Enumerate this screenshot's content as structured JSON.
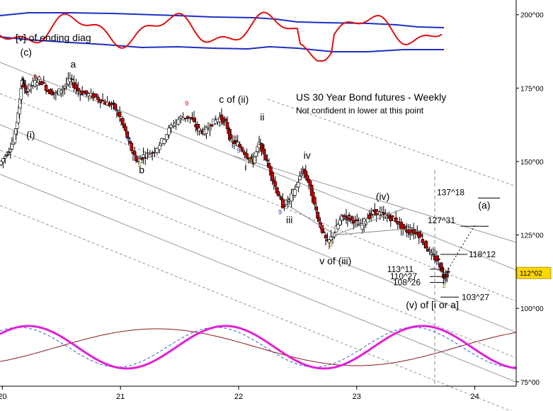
{
  "chart_data": {
    "type": "line",
    "title": "US 30 Year Bond futures - Weekly",
    "subtitle": "Not confident in lower at this point",
    "x_ticks": [
      "20",
      "21",
      "22",
      "23",
      "24"
    ],
    "x_range": [
      19.98,
      24.35
    ],
    "y_ticks": [
      "200^00",
      "175^00",
      "150^00",
      "125^00",
      "100^00",
      "75^00"
    ],
    "y_tick_values": [
      200,
      175,
      150,
      125,
      100,
      75
    ],
    "y_range": [
      73.5,
      205
    ],
    "current_price": "112^02",
    "current_price_value": 112.06,
    "colors": {
      "up": "#000000",
      "down": "#cc0000",
      "upper_band": "#1f2fc4",
      "oscillator": "#e01010",
      "cycle_magenta": "#e020d8",
      "cycle_blue": "#2f5fbf",
      "cycle_red": "#8a1a1a",
      "channel": "#999999",
      "price_box": "#ffd700",
      "seq_9_red": "#cc0000",
      "seq_9_blue": "#2233aa",
      "seq_5": "#997700"
    },
    "price_points": [
      [
        19.98,
        149
      ],
      [
        20.05,
        153
      ],
      [
        20.1,
        157
      ],
      [
        20.14,
        166
      ],
      [
        20.17,
        178
      ],
      [
        20.2,
        174
      ],
      [
        20.25,
        176
      ],
      [
        20.32,
        178
      ],
      [
        20.4,
        174
      ],
      [
        20.46,
        173
      ],
      [
        20.52,
        175
      ],
      [
        20.58,
        178
      ],
      [
        20.65,
        174
      ],
      [
        20.72,
        173
      ],
      [
        20.8,
        172
      ],
      [
        20.88,
        170
      ],
      [
        20.95,
        169
      ],
      [
        21.0,
        165
      ],
      [
        21.05,
        160
      ],
      [
        21.1,
        154
      ],
      [
        21.15,
        150
      ],
      [
        21.2,
        152
      ],
      [
        21.28,
        153
      ],
      [
        21.36,
        157
      ],
      [
        21.44,
        162
      ],
      [
        21.52,
        165
      ],
      [
        21.6,
        165
      ],
      [
        21.66,
        161
      ],
      [
        21.72,
        160
      ],
      [
        21.78,
        163
      ],
      [
        21.85,
        165
      ],
      [
        21.9,
        163
      ],
      [
        21.94,
        157
      ],
      [
        22.0,
        156
      ],
      [
        22.08,
        152
      ],
      [
        22.13,
        150
      ],
      [
        22.18,
        156
      ],
      [
        22.22,
        153
      ],
      [
        22.28,
        146
      ],
      [
        22.33,
        140
      ],
      [
        22.38,
        135
      ],
      [
        22.44,
        137
      ],
      [
        22.5,
        142
      ],
      [
        22.55,
        147
      ],
      [
        22.6,
        143
      ],
      [
        22.65,
        135
      ],
      [
        22.7,
        128
      ],
      [
        22.76,
        122
      ],
      [
        22.82,
        126
      ],
      [
        22.88,
        131
      ],
      [
        22.93,
        131
      ],
      [
        22.98,
        130
      ],
      [
        23.04,
        128
      ],
      [
        23.1,
        131
      ],
      [
        23.16,
        133
      ],
      [
        23.22,
        132
      ],
      [
        23.28,
        131
      ],
      [
        23.34,
        130
      ],
      [
        23.4,
        127
      ],
      [
        23.46,
        126
      ],
      [
        23.52,
        126
      ],
      [
        23.58,
        122
      ],
      [
        23.64,
        118
      ],
      [
        23.7,
        116
      ],
      [
        23.74,
        111
      ],
      [
        23.78,
        112
      ]
    ],
    "ending_diagonal_lines": [
      [
        [
          22.38,
          136
        ],
        [
          22.82,
          125
        ],
        [
          23.4,
          127
        ]
      ],
      [
        [
          22.82,
          125
        ],
        [
          23.4,
          134
        ]
      ]
    ],
    "wave_labels": [
      {
        "text": "[v]  of ending diag",
        "x": 20.12,
        "y": 191
      },
      {
        "text": "(c)",
        "x": 20.2,
        "y": 186
      },
      {
        "text": "a",
        "x": 20.6,
        "y": 182
      },
      {
        "text": "(i)",
        "x": 20.24,
        "y": 158
      },
      {
        "text": "b",
        "x": 21.18,
        "y": 146
      },
      {
        "text": "c of (ii)",
        "x": 21.96,
        "y": 170
      },
      {
        "text": "ii",
        "x": 22.2,
        "y": 164
      },
      {
        "text": "i",
        "x": 22.06,
        "y": 147
      },
      {
        "text": "iv",
        "x": 22.58,
        "y": 151
      },
      {
        "text": "iii",
        "x": 22.43,
        "y": 129
      },
      {
        "text": "v of (iii)",
        "x": 22.82,
        "y": 115
      },
      {
        "text": "(iv)",
        "x": 23.22,
        "y": 137
      },
      {
        "text": "(v) of [i or a]",
        "x": 23.64,
        "y": 100
      },
      {
        "text": "(a)",
        "x": 24.08,
        "y": 134
      }
    ],
    "price_targets": [
      {
        "text": "137^18",
        "value": 137.56
      },
      {
        "text": "127^31",
        "value": 127.97
      },
      {
        "text": "118^12",
        "value": 118.38
      },
      {
        "text": "113^11",
        "value": 113.34
      },
      {
        "text": "110^27",
        "value": 110.84
      },
      {
        "text": "108^26",
        "value": 108.81
      },
      {
        "text": "103^27",
        "value": 103.84
      }
    ],
    "sequence_counts": [
      {
        "text": "9",
        "x": 20.28,
        "y": 178,
        "color": "red"
      },
      {
        "text": "9",
        "x": 21.06,
        "y": 157,
        "color": "blue"
      },
      {
        "text": "5",
        "x": 21.16,
        "y": 148,
        "color": "gold"
      },
      {
        "text": "9",
        "x": 21.56,
        "y": 169,
        "color": "red"
      },
      {
        "text": "9",
        "x": 22.0,
        "y": 153,
        "color": "blue"
      },
      {
        "text": "5",
        "x": 22.1,
        "y": 150,
        "color": "gold"
      },
      {
        "text": "9",
        "x": 22.35,
        "y": 132,
        "color": "blue"
      },
      {
        "text": "5",
        "x": 22.78,
        "y": 121,
        "color": "gold"
      },
      {
        "text": "9",
        "x": 23.7,
        "y": 114,
        "color": "blue"
      },
      {
        "text": "2",
        "x": 23.74,
        "y": 107,
        "color": "gold"
      }
    ]
  }
}
